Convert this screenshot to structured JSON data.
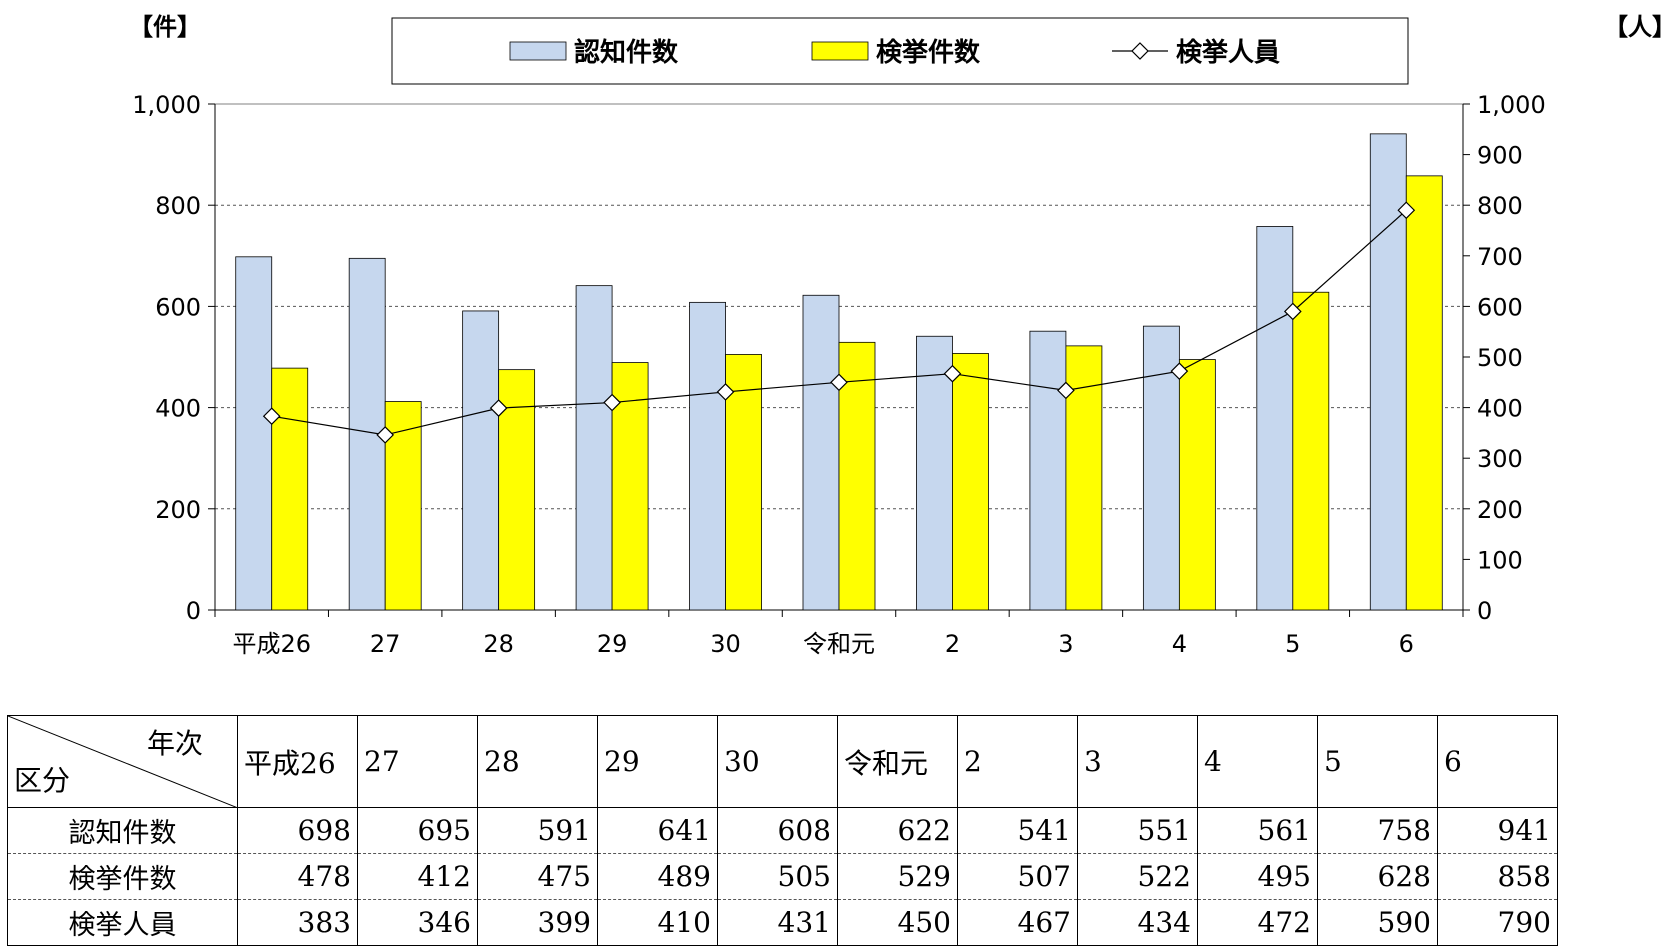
{
  "chart_data": {
    "type": "bar",
    "categories": [
      "平成26",
      "27",
      "28",
      "29",
      "30",
      "令和元",
      "2",
      "3",
      "4",
      "5",
      "6"
    ],
    "series": [
      {
        "name": "認知件数",
        "type": "bar",
        "axis": "left",
        "color": "#c6d7ee",
        "values": [
          698,
          695,
          591,
          641,
          608,
          622,
          541,
          551,
          561,
          758,
          941
        ]
      },
      {
        "name": "検挙件数",
        "type": "bar",
        "axis": "left",
        "color": "#ffff00",
        "values": [
          478,
          412,
          475,
          489,
          505,
          529,
          507,
          522,
          495,
          628,
          858
        ]
      },
      {
        "name": "検挙人員",
        "type": "line",
        "axis": "right",
        "color": "#000000",
        "marker": "diamond",
        "values": [
          383,
          346,
          399,
          410,
          431,
          450,
          467,
          434,
          472,
          590,
          790
        ]
      }
    ],
    "left_unit": "【件】",
    "right_unit": "【人】",
    "ylim_left": [
      0,
      1000
    ],
    "ylim_right": [
      0,
      1000
    ],
    "yticks_left": [
      "0",
      "200",
      "400",
      "600",
      "800",
      "1,000"
    ],
    "yticks_right": [
      "0",
      "100",
      "200",
      "300",
      "400",
      "500",
      "600",
      "700",
      "800",
      "900",
      "1,000"
    ],
    "grid": "dashed",
    "legend_placement": "top"
  },
  "table": {
    "corner_top": "年次",
    "corner_bottom": "区分",
    "headers": [
      "平成26",
      "27",
      "28",
      "29",
      "30",
      "令和元",
      "2",
      "3",
      "4",
      "5",
      "6"
    ],
    "rows": [
      {
        "label": "認知件数",
        "values": [
          "698",
          "695",
          "591",
          "641",
          "608",
          "622",
          "541",
          "551",
          "561",
          "758",
          "941"
        ]
      },
      {
        "label": "検挙件数",
        "values": [
          "478",
          "412",
          "475",
          "489",
          "505",
          "529",
          "507",
          "522",
          "495",
          "628",
          "858"
        ]
      },
      {
        "label": "検挙人員",
        "values": [
          "383",
          "346",
          "399",
          "410",
          "431",
          "450",
          "467",
          "434",
          "472",
          "590",
          "790"
        ]
      }
    ]
  }
}
